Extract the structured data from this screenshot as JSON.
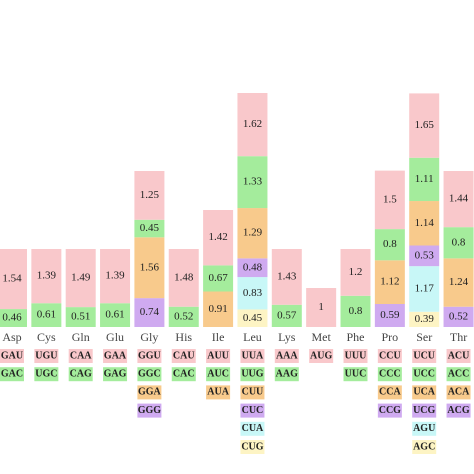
{
  "chart_data": {
    "type": "stacked-bar",
    "categories": [
      "Asp",
      "Cys",
      "Gln",
      "Glu",
      "Gly",
      "His",
      "Ile",
      "Leu",
      "Lys",
      "Met",
      "Phe",
      "Pro",
      "Ser",
      "Thr"
    ],
    "codons": [
      [
        "GAU",
        "GAC"
      ],
      [
        "UGU",
        "UGC"
      ],
      [
        "CAA",
        "CAG"
      ],
      [
        "GAA",
        "GAG"
      ],
      [
        "GGU",
        "GGC",
        "GGA",
        "GGG"
      ],
      [
        "CAU",
        "CAC"
      ],
      [
        "AUU",
        "AUC",
        "AUA"
      ],
      [
        "UUA",
        "UUG",
        "CUU",
        "CUC",
        "CUA",
        "CUG"
      ],
      [
        "AAA",
        "AAG"
      ],
      [
        "AUG"
      ],
      [
        "UUU",
        "UUC"
      ],
      [
        "CCU",
        "CCC",
        "CCA",
        "CCG"
      ],
      [
        "UCU",
        "UCC",
        "UCA",
        "UCG",
        "AGU",
        "AGC"
      ],
      [
        "ACU",
        "ACC",
        "ACA",
        "ACG"
      ]
    ],
    "values": [
      [
        1.54,
        0.46
      ],
      [
        1.39,
        0.61
      ],
      [
        1.49,
        0.51
      ],
      [
        1.39,
        0.61
      ],
      [
        1.25,
        0.45,
        1.56,
        0.74
      ],
      [
        1.48,
        0.52
      ],
      [
        1.42,
        0.67,
        0.91
      ],
      [
        1.62,
        1.33,
        1.29,
        0.48,
        0.83,
        0.45
      ],
      [
        1.43,
        0.57
      ],
      [
        1
      ],
      [
        1.2,
        0.8
      ],
      [
        1.5,
        0.8,
        1.12,
        0.59
      ],
      [
        1.65,
        1.11,
        1.14,
        0.53,
        1.17,
        0.39
      ],
      [
        1.44,
        0.8,
        1.24,
        0.52
      ]
    ],
    "colors": [
      "#f9c8cb",
      "#a4ec9c",
      "#f8ca8c",
      "#cfaaf0",
      "#c8f7f7",
      "#fdf4c4"
    ]
  }
}
